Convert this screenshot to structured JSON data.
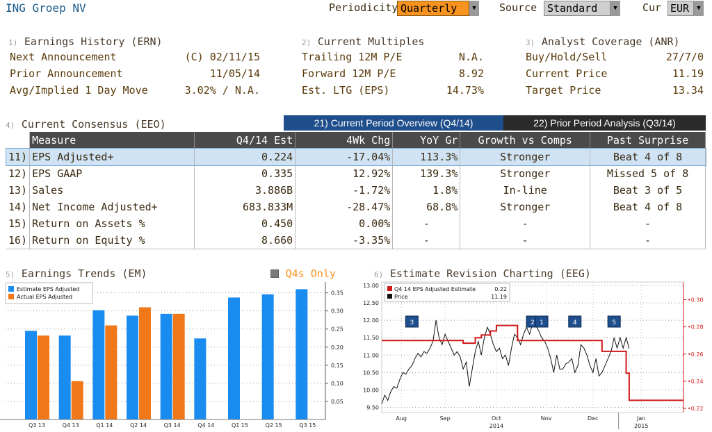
{
  "header": {
    "title": "ING Groep NV",
    "periodicity_label": "Periodicity",
    "periodicity_value": "Quarterly",
    "source_label": "Source",
    "source_value": "Standard",
    "cur_label": "Cur",
    "cur_value": "EUR"
  },
  "earnings_history": {
    "index": "1)",
    "title": "Earnings History (ERN)",
    "rows": [
      {
        "label": "Next Announcement",
        "value": "(C)  02/11/15"
      },
      {
        "label": "Prior Announcement",
        "value": "11/05/14"
      },
      {
        "label": "Avg/Implied 1 Day Move",
        "value": "3.02% / N.A."
      }
    ]
  },
  "current_multiples": {
    "index": "2)",
    "title": "Current Multiples",
    "rows": [
      {
        "label": "Trailing 12M P/E",
        "value": "N.A."
      },
      {
        "label": "Forward 12M P/E",
        "value": "8.92"
      },
      {
        "label": "Est. LTG (EPS)",
        "value": "14.73%"
      }
    ]
  },
  "analyst_coverage": {
    "index": "3)",
    "title": "Analyst Coverage (ANR)",
    "rows": [
      {
        "label": "Buy/Hold/Sell",
        "value": "27/7/0"
      },
      {
        "label": "Current Price",
        "value": "11.19"
      },
      {
        "label": "Target Price",
        "value": "13.34"
      }
    ]
  },
  "consensus": {
    "index": "4)",
    "title": "Current Consensus (EEO)",
    "tab_current": "21) Current Period Overview (Q4/14)",
    "tab_prior": "22) Prior Period Analysis (Q3/14)",
    "columns": [
      "Measure",
      "Q4/14 Est",
      "4Wk Chg",
      "YoY Gr",
      "Growth vs Comps",
      "Past Surprise"
    ],
    "rows": [
      {
        "num": "11)",
        "measure": "EPS Adjusted+",
        "est": "0.224",
        "chg": "-17.04%",
        "yoy": "113.3%",
        "growth": "Stronger",
        "surprise": "Beat 4 of 8"
      },
      {
        "num": "12)",
        "measure": "EPS GAAP",
        "est": "0.335",
        "chg": "12.92%",
        "yoy": "139.3%",
        "growth": "Stronger",
        "surprise": "Missed 5 of 8"
      },
      {
        "num": "13)",
        "measure": "Sales",
        "est": "3.886B",
        "chg": "-1.72%",
        "yoy": "1.8%",
        "growth": "In-line",
        "surprise": "Beat 3 of 5"
      },
      {
        "num": "14)",
        "measure": "Net Income Adjusted+",
        "est": "683.833M",
        "chg": "-28.47%",
        "yoy": "68.8%",
        "growth": "Stronger",
        "surprise": "Beat 4 of 8"
      },
      {
        "num": "15)",
        "measure": "Return on Assets %",
        "est": "0.450",
        "chg": "0.00%",
        "yoy": "-",
        "growth": "-",
        "surprise": "-"
      },
      {
        "num": "16)",
        "measure": "Return on Equity %",
        "est": "8.660",
        "chg": "-3.35%",
        "yoy": "-",
        "growth": "-",
        "surprise": "-"
      }
    ]
  },
  "earnings_trends": {
    "index": "5)",
    "title": "Earnings Trends (EM)",
    "q4s_label": "Q4s Only"
  },
  "estimate_revision": {
    "index": "6)",
    "title": "Estimate Revision Charting (EEG)"
  },
  "colors": {
    "estimate_blue": "#1a8cf0",
    "actual_orange": "#f07818",
    "revision_red": "#d01818",
    "price_black": "#111111",
    "highlight_row": "#cfe3f5",
    "tab_active": "#1f4e8c",
    "periodicity_bg": "#f7931e"
  },
  "chart_data": [
    {
      "type": "bar",
      "categories": [
        "Q3 13",
        "Q4 13",
        "Q1 14",
        "Q2 14",
        "Q3 14",
        "Q4 14",
        "Q1 15",
        "Q2 15",
        "Q3 15"
      ],
      "series": [
        {
          "name": "Estimate EPS Adjusted",
          "values": [
            0.245,
            0.232,
            0.302,
            0.287,
            0.292,
            0.224,
            0.337,
            0.346,
            0.36
          ]
        },
        {
          "name": "Actual EPS Adjusted",
          "values": [
            0.232,
            0.106,
            0.26,
            0.31,
            0.292,
            null,
            null,
            null,
            null
          ]
        }
      ],
      "ylim": [
        0,
        0.38
      ],
      "yticks": [
        "0.35",
        "0.30",
        "0.25",
        "0.20",
        "0.15",
        "0.10",
        "0.05"
      ],
      "ytick_values": [
        0.35,
        0.3,
        0.25,
        0.2,
        0.15,
        0.1,
        0.05
      ],
      "grid": true,
      "legend": "top-left"
    },
    {
      "type": "line",
      "legend_items": [
        {
          "name": "Q4 14 EPS Adjusted Estimate",
          "value": "0.22"
        },
        {
          "name": "Price",
          "value": "11.19"
        }
      ],
      "x_labels": [
        "Aug",
        "Sep",
        "Oct",
        "Nov",
        "Dec",
        "Jan"
      ],
      "x_years": [
        "2014",
        "2015"
      ],
      "left_ticks": [
        "13.00",
        "12.50",
        "12.00",
        "11.50",
        "11.00",
        "10.50",
        "10.00",
        "9.50"
      ],
      "left_tick_values": [
        13.0,
        12.5,
        12.0,
        11.5,
        11.0,
        10.5,
        10.0,
        9.5
      ],
      "right_ticks": [
        "0.30",
        "0.28",
        "0.26",
        "0.24",
        "0.22"
      ],
      "right_tick_values": [
        0.3,
        0.28,
        0.26,
        0.24,
        0.22
      ],
      "left_range": [
        9.35,
        13.1
      ],
      "right_range": [
        0.217,
        0.313
      ],
      "x_range": [
        0,
        100
      ],
      "series": [
        {
          "name": "Q4 14 EPS Adjusted Estimate",
          "x": [
            0,
            26,
            27,
            28.5,
            31,
            33,
            36,
            38,
            43,
            45,
            48,
            66,
            67,
            72,
            73,
            78,
            80,
            81,
            82,
            100
          ],
          "y": [
            0.27,
            0.27,
            0.268,
            0.268,
            0.272,
            0.274,
            0.277,
            0.281,
            0.281,
            0.27,
            0.27,
            0.27,
            0.27,
            0.27,
            0.262,
            0.262,
            0.262,
            0.246,
            0.226,
            0.226
          ]
        },
        {
          "name": "Price",
          "x": [
            0,
            1,
            2,
            3,
            4,
            5,
            6,
            7,
            8,
            9,
            10,
            11,
            12,
            13,
            14,
            15,
            16,
            17,
            18,
            19,
            20,
            21,
            22,
            23,
            24,
            25,
            26,
            27,
            28,
            29,
            30,
            31,
            32,
            33,
            34,
            35,
            36,
            37,
            38,
            39,
            40,
            41,
            42,
            43,
            44,
            45,
            46,
            47,
            48,
            49,
            50,
            51,
            52,
            53,
            54,
            55,
            56,
            57,
            58,
            59,
            60,
            61,
            62,
            63,
            64,
            65,
            66,
            67,
            68,
            69,
            70,
            71,
            72,
            73,
            74,
            75,
            76,
            77,
            78,
            79,
            80,
            81,
            82
          ],
          "y": [
            9.6,
            9.85,
            9.7,
            9.95,
            10.1,
            10.05,
            10.3,
            10.5,
            10.45,
            10.6,
            10.7,
            10.9,
            11.05,
            10.95,
            11.1,
            11.05,
            11.2,
            11.4,
            12.0,
            11.5,
            11.3,
            11.6,
            11.4,
            11.2,
            11.0,
            11.1,
            10.95,
            10.6,
            10.8,
            10.1,
            10.6,
            11.1,
            11.4,
            11.0,
            11.5,
            11.8,
            11.6,
            11.3,
            11.1,
            11.2,
            10.9,
            11.0,
            10.7,
            11.2,
            11.6,
            11.5,
            11.3,
            11.6,
            11.8,
            11.6,
            11.9,
            11.85,
            11.7,
            11.5,
            11.4,
            11.2,
            10.9,
            10.5,
            11.0,
            10.6,
            10.6,
            10.75,
            10.8,
            10.9,
            10.5,
            10.7,
            11.3,
            11.2,
            11.0,
            10.7,
            10.5,
            10.9,
            10.4,
            10.5,
            10.7,
            10.9,
            11.1,
            11.5,
            11.2,
            11.5,
            11.2,
            11.5,
            11.19
          ]
        }
      ],
      "markers": [
        {
          "label": "3",
          "x": 10
        },
        {
          "label": "2",
          "x": 50
        },
        {
          "label": "1",
          "x": 53
        },
        {
          "label": "4",
          "x": 64
        },
        {
          "label": "5",
          "x": 77
        }
      ]
    }
  ]
}
